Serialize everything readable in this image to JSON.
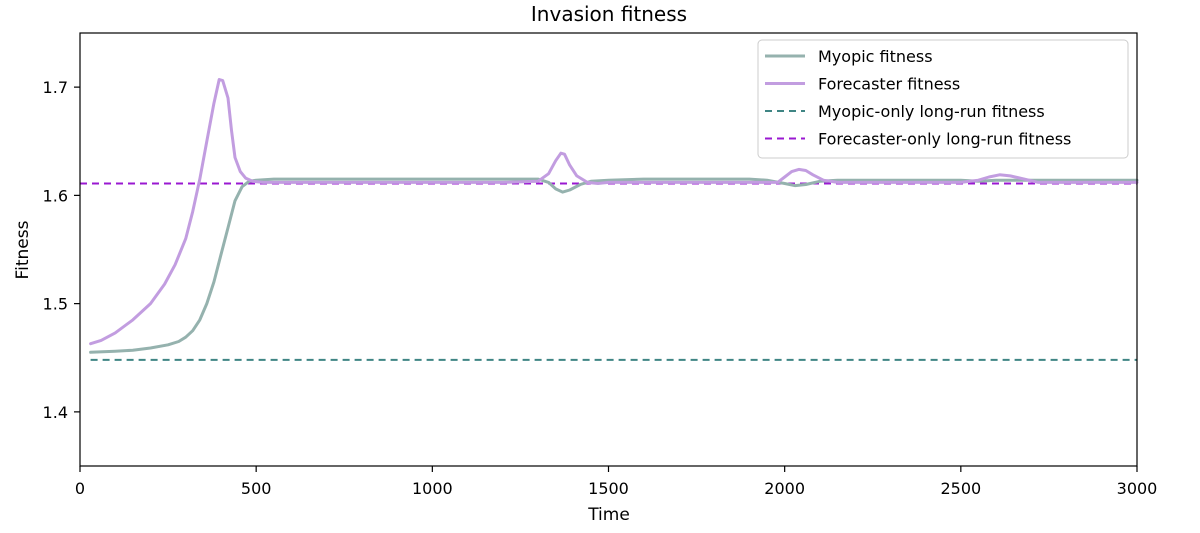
{
  "chart_data": {
    "type": "line",
    "title": "Invasion fitness",
    "xlabel": "Time",
    "ylabel": "Fitness",
    "xlim": [
      0,
      3000
    ],
    "ylim": [
      1.35,
      1.75
    ],
    "xticks": [
      0,
      500,
      1000,
      1500,
      2000,
      2500,
      3000
    ],
    "xtick_labels": [
      "0",
      "500",
      "1000",
      "1500",
      "2000",
      "2500",
      "3000"
    ],
    "yticks": [
      1.4,
      1.5,
      1.6,
      1.7
    ],
    "ytick_labels": [
      "1.4",
      "1.5",
      "1.6",
      "1.7"
    ],
    "grid": false,
    "legend_position": "top-right",
    "series": [
      {
        "name": "Myopic fitness",
        "color": "#95b2ae",
        "style": "solid",
        "x": [
          30,
          100,
          150,
          200,
          250,
          280,
          300,
          320,
          340,
          360,
          380,
          400,
          420,
          440,
          460,
          480,
          500,
          550,
          600,
          800,
          1000,
          1200,
          1300,
          1330,
          1350,
          1370,
          1390,
          1420,
          1450,
          1500,
          1600,
          1900,
          1950,
          2000,
          2030,
          2060,
          2100,
          2150,
          2300,
          2500,
          2550,
          2600,
          2650,
          2700,
          2800,
          3000
        ],
        "y": [
          1.455,
          1.456,
          1.457,
          1.459,
          1.462,
          1.465,
          1.469,
          1.475,
          1.485,
          1.5,
          1.52,
          1.545,
          1.57,
          1.595,
          1.608,
          1.613,
          1.614,
          1.615,
          1.615,
          1.615,
          1.615,
          1.615,
          1.615,
          1.612,
          1.606,
          1.603,
          1.605,
          1.61,
          1.613,
          1.614,
          1.615,
          1.615,
          1.614,
          1.611,
          1.609,
          1.61,
          1.613,
          1.614,
          1.614,
          1.614,
          1.613,
          1.614,
          1.614,
          1.614,
          1.614,
          1.614
        ]
      },
      {
        "name": "Forecaster fitness",
        "color": "#c29de0",
        "style": "solid",
        "x": [
          30,
          60,
          100,
          150,
          200,
          240,
          270,
          300,
          320,
          340,
          360,
          380,
          395,
          405,
          420,
          430,
          440,
          455,
          470,
          490,
          520,
          600,
          800,
          1000,
          1200,
          1300,
          1330,
          1350,
          1365,
          1375,
          1390,
          1410,
          1440,
          1470,
          1500,
          1700,
          1900,
          1980,
          2000,
          2020,
          2040,
          2060,
          2080,
          2110,
          2150,
          2200,
          2400,
          2500,
          2550,
          2580,
          2610,
          2640,
          2680,
          2720,
          2800,
          3000
        ],
        "y": [
          1.463,
          1.466,
          1.473,
          1.485,
          1.5,
          1.518,
          1.536,
          1.56,
          1.585,
          1.615,
          1.65,
          1.685,
          1.707,
          1.706,
          1.69,
          1.66,
          1.635,
          1.622,
          1.616,
          1.613,
          1.612,
          1.612,
          1.612,
          1.612,
          1.612,
          1.613,
          1.62,
          1.632,
          1.639,
          1.638,
          1.628,
          1.618,
          1.612,
          1.611,
          1.612,
          1.612,
          1.612,
          1.612,
          1.617,
          1.622,
          1.624,
          1.623,
          1.619,
          1.614,
          1.612,
          1.612,
          1.612,
          1.612,
          1.614,
          1.617,
          1.619,
          1.618,
          1.615,
          1.612,
          1.612,
          1.612
        ]
      },
      {
        "name": "Myopic-only long-run fitness",
        "color": "#3f8584",
        "style": "dashed",
        "x": [
          30,
          3000
        ],
        "y": [
          1.448,
          1.448
        ]
      },
      {
        "name": "Forecaster-only long-run fitness",
        "color": "#9a18d1",
        "style": "dashed",
        "x": [
          0,
          3000
        ],
        "y": [
          1.611,
          1.611
        ]
      }
    ]
  }
}
